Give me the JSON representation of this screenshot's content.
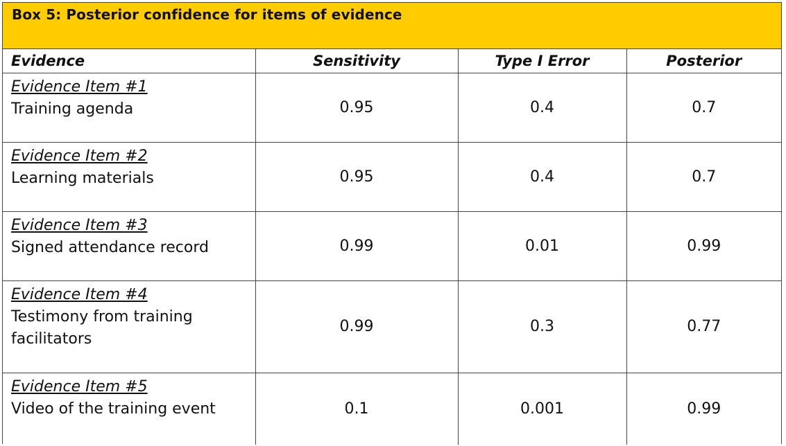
{
  "box": {
    "title": "Box 5: Posterior confidence for items of evidence",
    "header_color": "#ffcc00"
  },
  "table": {
    "headers": [
      "Evidence",
      "Sensitivity",
      "Type I Error",
      "Posterior"
    ],
    "rows": [
      {
        "label": "Evidence Item #1",
        "description": "Training agenda",
        "sensitivity": "0.95",
        "type1": "0.4",
        "posterior": "0.7"
      },
      {
        "label": "Evidence Item #2",
        "description": "Learning materials",
        "sensitivity": "0.95",
        "type1": "0.4",
        "posterior": "0.7"
      },
      {
        "label": "Evidence Item #3",
        "description": "Signed attendance record",
        "sensitivity": "0.99",
        "type1": "0.01",
        "posterior": "0.99"
      },
      {
        "label": "Evidence Item #4",
        "description": "Testimony from training facilitators",
        "sensitivity": "0.99",
        "type1": "0.3",
        "posterior": "0.77"
      },
      {
        "label": "Evidence Item #5",
        "description": "Video of the training event",
        "sensitivity": "0.1",
        "type1": "0.001",
        "posterior": "0.99"
      }
    ]
  }
}
